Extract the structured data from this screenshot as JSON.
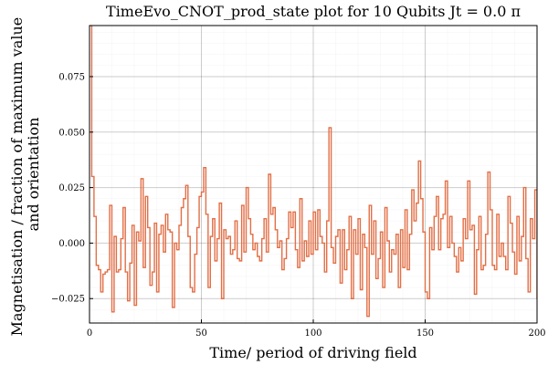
{
  "chart_data": {
    "type": "line",
    "title": "TimeEvo_CNOT_prod_state plot for 10 Qubits Jt = 0.0 π",
    "xlabel": "Time/ period of driving field",
    "ylabel_lines": [
      "Magnetisation / fraction of maximum value",
      "and orientation"
    ],
    "xlim": [
      0,
      200
    ],
    "ylim": [
      -0.036,
      0.098
    ],
    "x_ticks": [
      0,
      50,
      100,
      150,
      200
    ],
    "x_tick_labels": [
      "0",
      "50",
      "100",
      "150",
      "200"
    ],
    "y_ticks": [
      -0.025,
      0.0,
      0.025,
      0.05,
      0.075
    ],
    "y_tick_labels": [
      "−0.025",
      "0.000",
      "0.025",
      "0.050",
      "0.075"
    ],
    "grid": true,
    "legend": "none",
    "step_style": "pre",
    "series": [
      {
        "color": "#e26f46",
        "x_start": 0,
        "x_step": 1,
        "values": [
          0.098,
          0.03,
          0.012,
          -0.01,
          -0.012,
          -0.022,
          -0.014,
          -0.013,
          -0.012,
          0.017,
          -0.031,
          0.003,
          -0.013,
          -0.012,
          0.002,
          0.016,
          -0.013,
          -0.026,
          -0.009,
          0.008,
          -0.028,
          0.005,
          0.001,
          0.029,
          -0.011,
          0.021,
          0.007,
          -0.019,
          -0.013,
          0.009,
          -0.022,
          0.004,
          0.008,
          -0.004,
          0.013,
          0.006,
          0.005,
          -0.029,
          0.0,
          -0.003,
          0.008,
          0.016,
          0.02,
          0.026,
          0.003,
          -0.02,
          -0.022,
          -0.005,
          0.007,
          0.021,
          0.023,
          0.034,
          0.013,
          -0.02,
          0.003,
          0.011,
          -0.008,
          0.002,
          0.018,
          -0.025,
          0.006,
          0.002,
          0.003,
          -0.005,
          -0.003,
          0.01,
          -0.007,
          -0.008,
          0.017,
          -0.004,
          0.025,
          0.011,
          0.004,
          -0.003,
          0.0,
          -0.006,
          -0.008,
          0.002,
          0.011,
          -0.004,
          0.031,
          0.013,
          0.016,
          0.006,
          -0.002,
          0.001,
          -0.012,
          -0.007,
          0.002,
          0.014,
          0.007,
          0.014,
          -0.003,
          -0.011,
          0.02,
          -0.008,
          0.001,
          -0.006,
          0.01,
          -0.005,
          0.014,
          -0.003,
          0.015,
          0.003,
          0.0,
          -0.013,
          0.01,
          0.052,
          -0.002,
          -0.009,
          0.003,
          0.006,
          -0.018,
          0.006,
          -0.012,
          -0.003,
          0.012,
          -0.025,
          0.006,
          -0.005,
          0.011,
          -0.021,
          0.004,
          -0.002,
          -0.033,
          0.017,
          -0.005,
          0.01,
          -0.016,
          -0.007,
          0.005,
          -0.02,
          0.016,
          0.001,
          -0.013,
          -0.003,
          -0.005,
          0.004,
          -0.02,
          0.006,
          -0.011,
          0.015,
          -0.012,
          0.004,
          0.024,
          0.01,
          0.018,
          0.037,
          0.02,
          0.005,
          -0.022,
          -0.025,
          0.007,
          -0.003,
          0.012,
          0.021,
          -0.003,
          0.011,
          0.013,
          0.028,
          -0.002,
          0.012,
          0.0,
          -0.006,
          -0.013,
          -0.002,
          -0.008,
          0.011,
          0.002,
          0.028,
          0.006,
          0.008,
          -0.023,
          -0.003,
          0.012,
          -0.012,
          -0.01,
          0.004,
          0.032,
          0.015,
          -0.01,
          -0.012,
          0.013,
          -0.006,
          0.0,
          -0.006,
          -0.012,
          0.021,
          0.009,
          -0.004,
          -0.014,
          0.012,
          -0.008,
          0.003,
          0.025,
          -0.007,
          -0.022,
          0.011,
          0.002,
          0.024,
          -0.025,
          -0.019
        ]
      }
    ]
  }
}
